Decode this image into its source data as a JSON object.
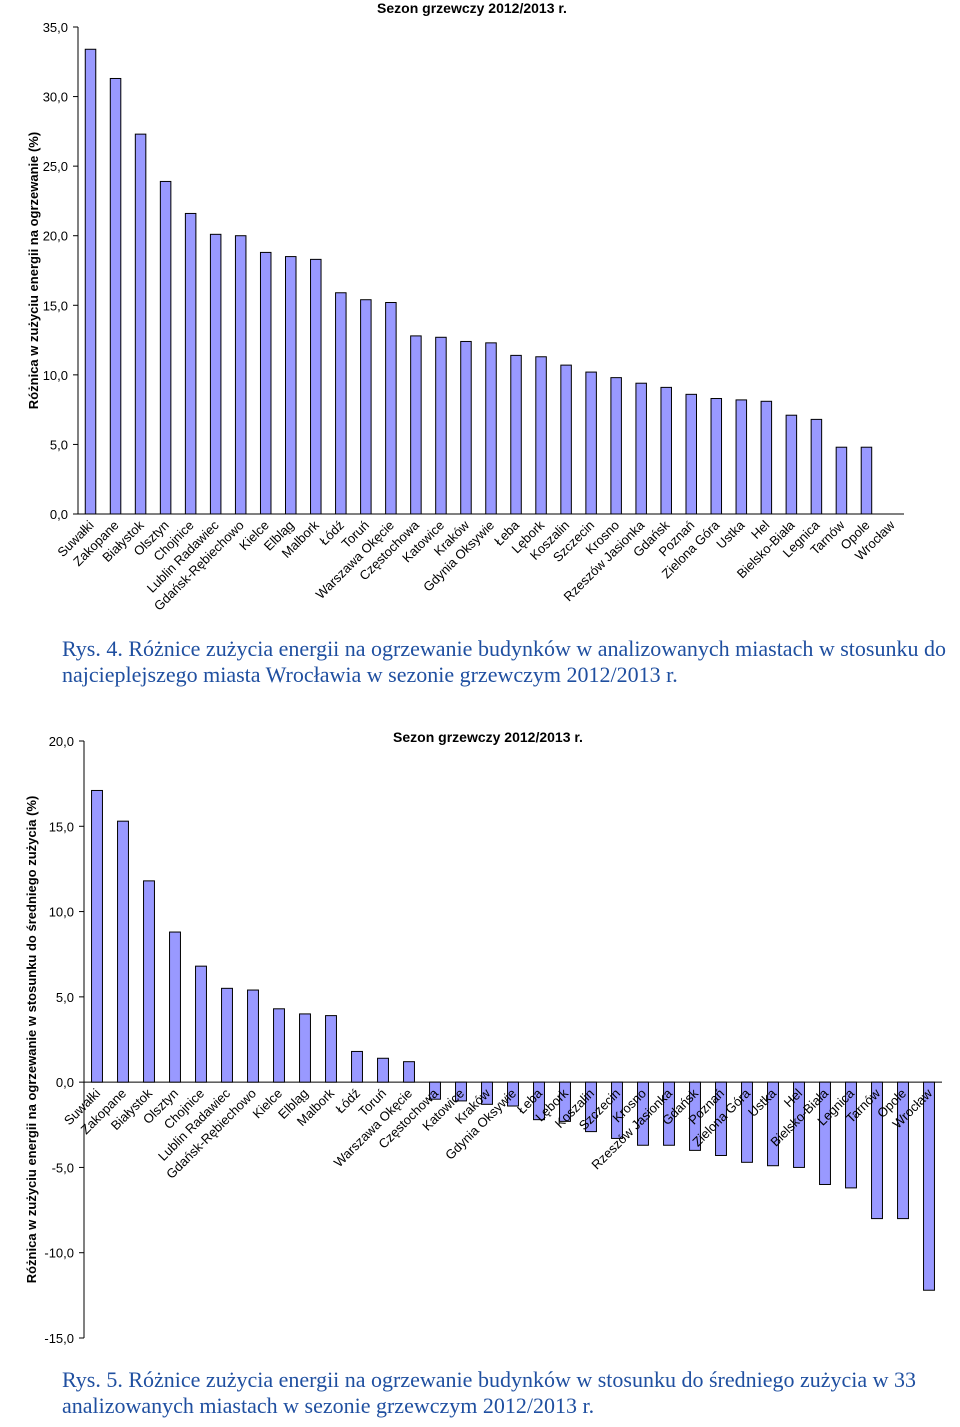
{
  "chart_data": [
    {
      "type": "bar",
      "title": "Sezon grzewczy 2012/2013 r.",
      "ylabel": "Różnica w zużyciu energii na ogrzewanie (%)",
      "xlabel": "",
      "ylim": [
        0,
        35
      ],
      "yticks": [
        "0,0",
        "5,0",
        "10,0",
        "15,0",
        "20,0",
        "25,0",
        "30,0",
        "35,0"
      ],
      "grid": false,
      "bar_color": "#9999ff",
      "categories": [
        "Suwałki",
        "Zakopane",
        "Białystok",
        "Olsztyn",
        "Chojnice",
        "Lublin Radawiec",
        "Gdańsk-Rębiechowo",
        "Kielce",
        "Elbląg",
        "Malbork",
        "Łódź",
        "Toruń",
        "Warszawa Okęcie",
        "Częstochowa",
        "Katowice",
        "Kraków",
        "Gdynia Oksywie",
        "Łeba",
        "Lębork",
        "Koszalin",
        "Szczecin",
        "Krosno",
        "Rzeszów Jasionka",
        "Gdańsk",
        "Poznań",
        "Zielona Góra",
        "Ustka",
        "Hel",
        "Bielsko-Biała",
        "Legnica",
        "Tarnów",
        "Opole",
        "Wrocław"
      ],
      "values": [
        33.4,
        31.3,
        27.3,
        23.9,
        21.6,
        20.1,
        20.0,
        18.8,
        18.5,
        18.3,
        15.9,
        15.4,
        15.2,
        12.8,
        12.7,
        12.4,
        12.3,
        11.4,
        11.3,
        10.7,
        10.2,
        9.8,
        9.4,
        9.1,
        8.6,
        8.3,
        8.2,
        8.1,
        7.1,
        6.8,
        4.8,
        4.8,
        0.0
      ]
    },
    {
      "type": "bar",
      "title": "Sezon grzewczy 2012/2013 r.",
      "ylabel": "Różnica w zużyciu energii na ogrzewanie w stosunku do średniego zużycia (%)",
      "xlabel": "",
      "ylim": [
        -15,
        20
      ],
      "yticks": [
        "-15,0",
        "-10,0",
        "-5,0",
        "0,0",
        "5,0",
        "10,0",
        "15,0",
        "20,0"
      ],
      "grid": false,
      "bar_color": "#9999ff",
      "categories": [
        "Suwałki",
        "Zakopane",
        "Białystok",
        "Olsztyn",
        "Chojnice",
        "Lublin Radawiec",
        "Gdańsk-Rębiechowo",
        "Kielce",
        "Elbląg",
        "Malbork",
        "Łódź",
        "Toruń",
        "Warszawa Okęcie",
        "Częstochowa",
        "Katowice",
        "Kraków",
        "Gdynia Oksywie",
        "Łeba",
        "Lębork",
        "Koszalin",
        "Szczecin",
        "Krosno",
        "Rzeszów Jasionka",
        "Gdańsk",
        "Poznań",
        "Zielona Góra",
        "Ustka",
        "Hel",
        "Bielsko-Biała",
        "Legnica",
        "Tarnów",
        "Opole",
        "Wrocław"
      ],
      "values": [
        17.1,
        15.3,
        11.8,
        8.8,
        6.8,
        5.5,
        5.4,
        4.3,
        4.0,
        3.9,
        1.8,
        1.4,
        1.2,
        -1.0,
        -1.1,
        -1.3,
        -1.4,
        -2.2,
        -2.3,
        -2.9,
        -3.3,
        -3.7,
        -3.7,
        -4.0,
        -4.3,
        -4.7,
        -4.9,
        -5.0,
        -6.0,
        -6.2,
        -8.0,
        -8.0,
        -12.2
      ]
    }
  ],
  "captions": {
    "fig4": "Rys. 4. Różnice zużycia energii na ogrzewanie budynków w analizowanych miastach w stosunku do najcieplejszego miasta Wrocławia w sezonie grzewczym 2012/2013 r.",
    "fig5": "Rys. 5. Różnice zużycia energii na ogrzewanie budynków w stosunku do średniego zużycia w 33 analizowanych miastach w sezonie grzewczym 2012/2013 r."
  }
}
